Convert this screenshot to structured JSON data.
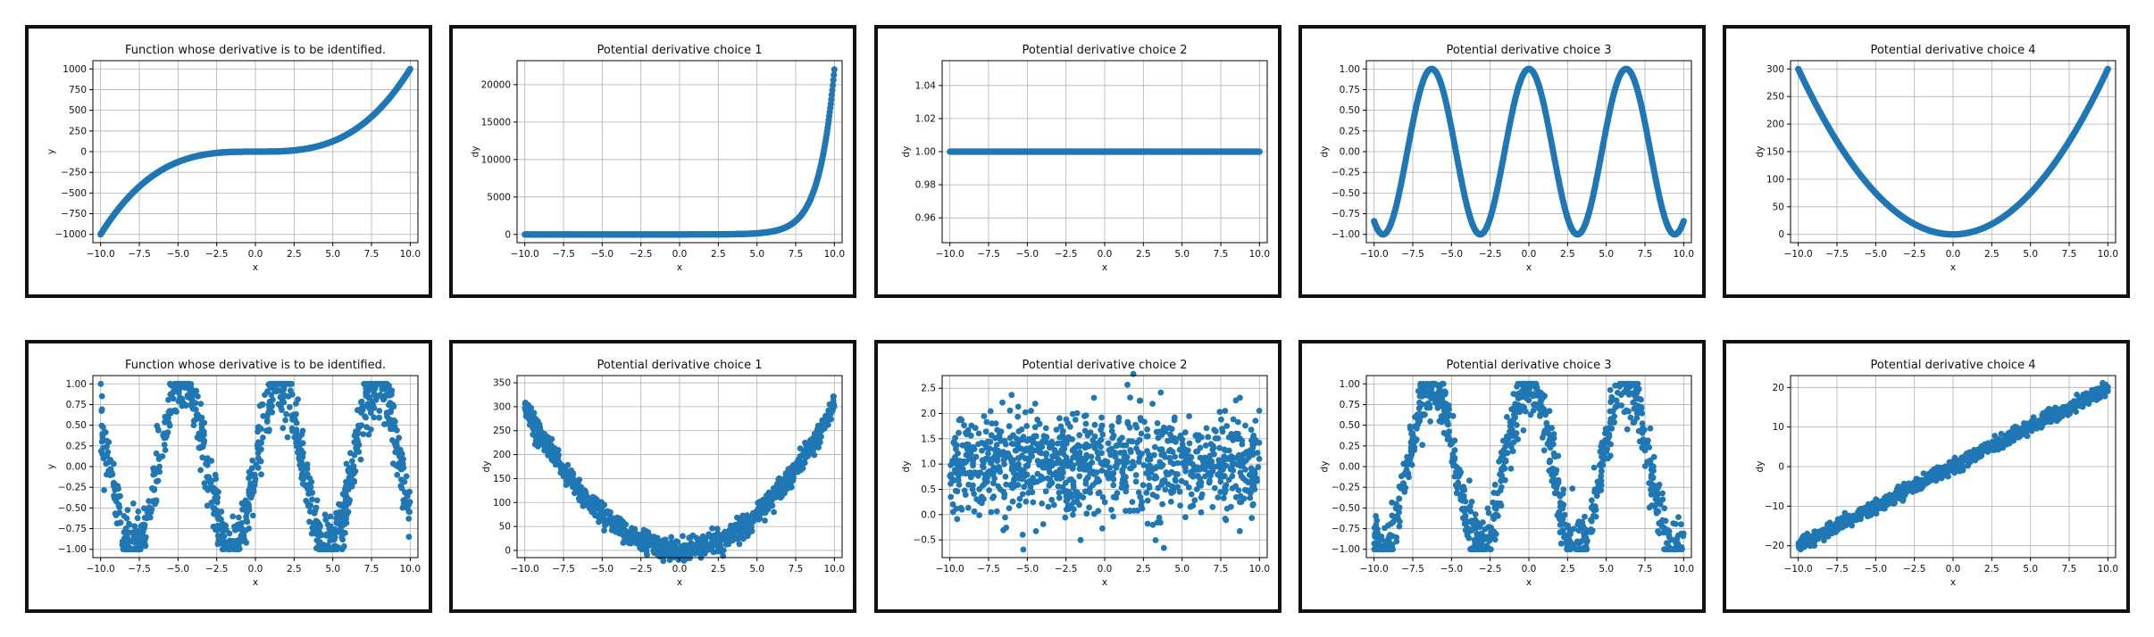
{
  "colors": {
    "marker": "#1f77b4",
    "grid": "#b0b0b0",
    "border": "#111111"
  },
  "chart_data": [
    {
      "type": "scatter",
      "id": "r1c1",
      "title": "Function whose derivative is to be identified.",
      "xlabel": "x",
      "ylabel": "y",
      "xlim": [
        -10.5,
        10.5
      ],
      "ylim": [
        -1100,
        1100
      ],
      "xticks": [
        -10,
        -7.5,
        -5,
        -2.5,
        0,
        2.5,
        5,
        7.5,
        10
      ],
      "xtick_labels": [
        "−10.0",
        "−7.5",
        "−5.0",
        "−2.5",
        "0.0",
        "2.5",
        "5.0",
        "7.5",
        "10.0"
      ],
      "yticks": [
        -1000,
        -750,
        -500,
        -250,
        0,
        250,
        500,
        750,
        1000
      ],
      "ytick_labels": [
        "−1000",
        "−750",
        "−500",
        "−250",
        "0",
        "250",
        "500",
        "750",
        "1000"
      ],
      "function": "x^3",
      "grid": true
    },
    {
      "type": "scatter",
      "id": "r1c2",
      "title": "Potential derivative choice 1",
      "xlabel": "x",
      "ylabel": "dy",
      "xlim": [
        -10.5,
        10.5
      ],
      "ylim": [
        -1100,
        23200
      ],
      "xticks": [
        -10,
        -7.5,
        -5,
        -2.5,
        0,
        2.5,
        5,
        7.5,
        10
      ],
      "xtick_labels": [
        "−10.0",
        "−7.5",
        "−5.0",
        "−2.5",
        "0.0",
        "2.5",
        "5.0",
        "7.5",
        "10.0"
      ],
      "yticks": [
        0,
        5000,
        10000,
        15000,
        20000
      ],
      "ytick_labels": [
        "0",
        "5000",
        "10000",
        "15000",
        "20000"
      ],
      "function": "e^x",
      "grid": true
    },
    {
      "type": "scatter",
      "id": "r1c3",
      "title": "Potential derivative choice 2",
      "xlabel": "x",
      "ylabel": "dy",
      "xlim": [
        -10.5,
        10.5
      ],
      "ylim": [
        0.945,
        1.055
      ],
      "xticks": [
        -10,
        -7.5,
        -5,
        -2.5,
        0,
        2.5,
        5,
        7.5,
        10
      ],
      "xtick_labels": [
        "−10.0",
        "−7.5",
        "−5.0",
        "−2.5",
        "0.0",
        "2.5",
        "5.0",
        "7.5",
        "10.0"
      ],
      "yticks": [
        0.96,
        0.98,
        1.0,
        1.02,
        1.04
      ],
      "ytick_labels": [
        "0.96",
        "0.98",
        "1.00",
        "1.02",
        "1.04"
      ],
      "function": "1",
      "grid": true
    },
    {
      "type": "scatter",
      "id": "r1c4",
      "title": "Potential derivative choice 3",
      "xlabel": "x",
      "ylabel": "dy",
      "xlim": [
        -10.5,
        10.5
      ],
      "ylim": [
        -1.1,
        1.1
      ],
      "xticks": [
        -10,
        -7.5,
        -5,
        -2.5,
        0,
        2.5,
        5,
        7.5,
        10
      ],
      "xtick_labels": [
        "−10.0",
        "−7.5",
        "−5.0",
        "−2.5",
        "0.0",
        "2.5",
        "5.0",
        "7.5",
        "10.0"
      ],
      "yticks": [
        -1,
        -0.75,
        -0.5,
        -0.25,
        0,
        0.25,
        0.5,
        0.75,
        1
      ],
      "ytick_labels": [
        "−1.00",
        "−0.75",
        "−0.50",
        "−0.25",
        "0.00",
        "0.25",
        "0.50",
        "0.75",
        "1.00"
      ],
      "function": "cos(x)",
      "grid": true
    },
    {
      "type": "scatter",
      "id": "r1c5",
      "title": "Potential derivative choice 4",
      "xlabel": "x",
      "ylabel": "dy",
      "xlim": [
        -10.5,
        10.5
      ],
      "ylim": [
        -15,
        315
      ],
      "xticks": [
        -10,
        -7.5,
        -5,
        -2.5,
        0,
        2.5,
        5,
        7.5,
        10
      ],
      "xtick_labels": [
        "−10.0",
        "−7.5",
        "−5.0",
        "−2.5",
        "0.0",
        "2.5",
        "5.0",
        "7.5",
        "10.0"
      ],
      "yticks": [
        0,
        50,
        100,
        150,
        200,
        250,
        300
      ],
      "ytick_labels": [
        "0",
        "50",
        "100",
        "150",
        "200",
        "250",
        "300"
      ],
      "function": "3x^2",
      "grid": true
    },
    {
      "type": "scatter",
      "id": "r2c1",
      "title": "Function whose derivative is to be identified.",
      "xlabel": "x",
      "ylabel": "y",
      "xlim": [
        -10.5,
        10.5
      ],
      "ylim": [
        -1.1,
        1.1
      ],
      "xticks": [
        -10,
        -7.5,
        -5,
        -2.5,
        0,
        2.5,
        5,
        7.5,
        10
      ],
      "xtick_labels": [
        "−10.0",
        "−7.5",
        "−5.0",
        "−2.5",
        "0.0",
        "2.5",
        "5.0",
        "7.5",
        "10.0"
      ],
      "yticks": [
        -1,
        -0.75,
        -0.5,
        -0.25,
        0,
        0.25,
        0.5,
        0.75,
        1
      ],
      "ytick_labels": [
        "−1.00",
        "−0.75",
        "−0.50",
        "−0.25",
        "0.00",
        "0.25",
        "0.50",
        "0.75",
        "1.00"
      ],
      "function": "sin(x) + noise",
      "grid": true
    },
    {
      "type": "scatter",
      "id": "r2c2",
      "title": "Potential derivative choice 1",
      "xlabel": "x",
      "ylabel": "dy",
      "xlim": [
        -10.5,
        10.5
      ],
      "ylim": [
        -15,
        365
      ],
      "xticks": [
        -10,
        -7.5,
        -5,
        -2.5,
        0,
        2.5,
        5,
        7.5,
        10
      ],
      "xtick_labels": [
        "−10.0",
        "−7.5",
        "−5.0",
        "−2.5",
        "0.0",
        "2.5",
        "5.0",
        "7.5",
        "10.0"
      ],
      "yticks": [
        0,
        50,
        100,
        150,
        200,
        250,
        300,
        350
      ],
      "ytick_labels": [
        "0",
        "50",
        "100",
        "150",
        "200",
        "250",
        "300",
        "350"
      ],
      "function": "3x^2 + noise",
      "grid": true
    },
    {
      "type": "scatter",
      "id": "r2c3",
      "title": "Potential derivative choice 2",
      "xlabel": "x",
      "ylabel": "dy",
      "xlim": [
        -10.5,
        10.5
      ],
      "ylim": [
        -0.85,
        2.75
      ],
      "xticks": [
        -10,
        -7.5,
        -5,
        -2.5,
        0,
        2.5,
        5,
        7.5,
        10
      ],
      "xtick_labels": [
        "−10.0",
        "−7.5",
        "−5.0",
        "−2.5",
        "0.0",
        "2.5",
        "5.0",
        "7.5",
        "10.0"
      ],
      "yticks": [
        -0.5,
        0,
        0.5,
        1.0,
        1.5,
        2.0,
        2.5
      ],
      "ytick_labels": [
        "−0.5",
        "0.0",
        "0.5",
        "1.0",
        "1.5",
        "2.0",
        "2.5"
      ],
      "function": "1 + noise",
      "grid": true
    },
    {
      "type": "scatter",
      "id": "r2c4",
      "title": "Potential derivative choice 3",
      "xlabel": "x",
      "ylabel": "dy",
      "xlim": [
        -10.5,
        10.5
      ],
      "ylim": [
        -1.1,
        1.1
      ],
      "xticks": [
        -10,
        -7.5,
        -5,
        -2.5,
        0,
        2.5,
        5,
        7.5,
        10
      ],
      "xtick_labels": [
        "−10.0",
        "−7.5",
        "−5.0",
        "−2.5",
        "0.0",
        "2.5",
        "5.0",
        "7.5",
        "10.0"
      ],
      "yticks": [
        -1,
        -0.75,
        -0.5,
        -0.25,
        0,
        0.25,
        0.5,
        0.75,
        1
      ],
      "ytick_labels": [
        "−1.00",
        "−0.75",
        "−0.50",
        "−0.25",
        "0.00",
        "0.25",
        "0.50",
        "0.75",
        "1.00"
      ],
      "function": "cos(x) + noise",
      "grid": true
    },
    {
      "type": "scatter",
      "id": "r2c5",
      "title": "Potential derivative choice 4",
      "xlabel": "x",
      "ylabel": "dy",
      "xlim": [
        -10.5,
        10.5
      ],
      "ylim": [
        -23,
        23
      ],
      "xticks": [
        -10,
        -7.5,
        -5,
        -2.5,
        0,
        2.5,
        5,
        7.5,
        10
      ],
      "xtick_labels": [
        "−10.0",
        "−7.5",
        "−5.0",
        "−2.5",
        "0.0",
        "2.5",
        "5.0",
        "7.5",
        "10.0"
      ],
      "yticks": [
        -20,
        -10,
        0,
        10,
        20
      ],
      "ytick_labels": [
        "−20",
        "−10",
        "0",
        "10",
        "20"
      ],
      "function": "2x + noise",
      "grid": true
    }
  ]
}
